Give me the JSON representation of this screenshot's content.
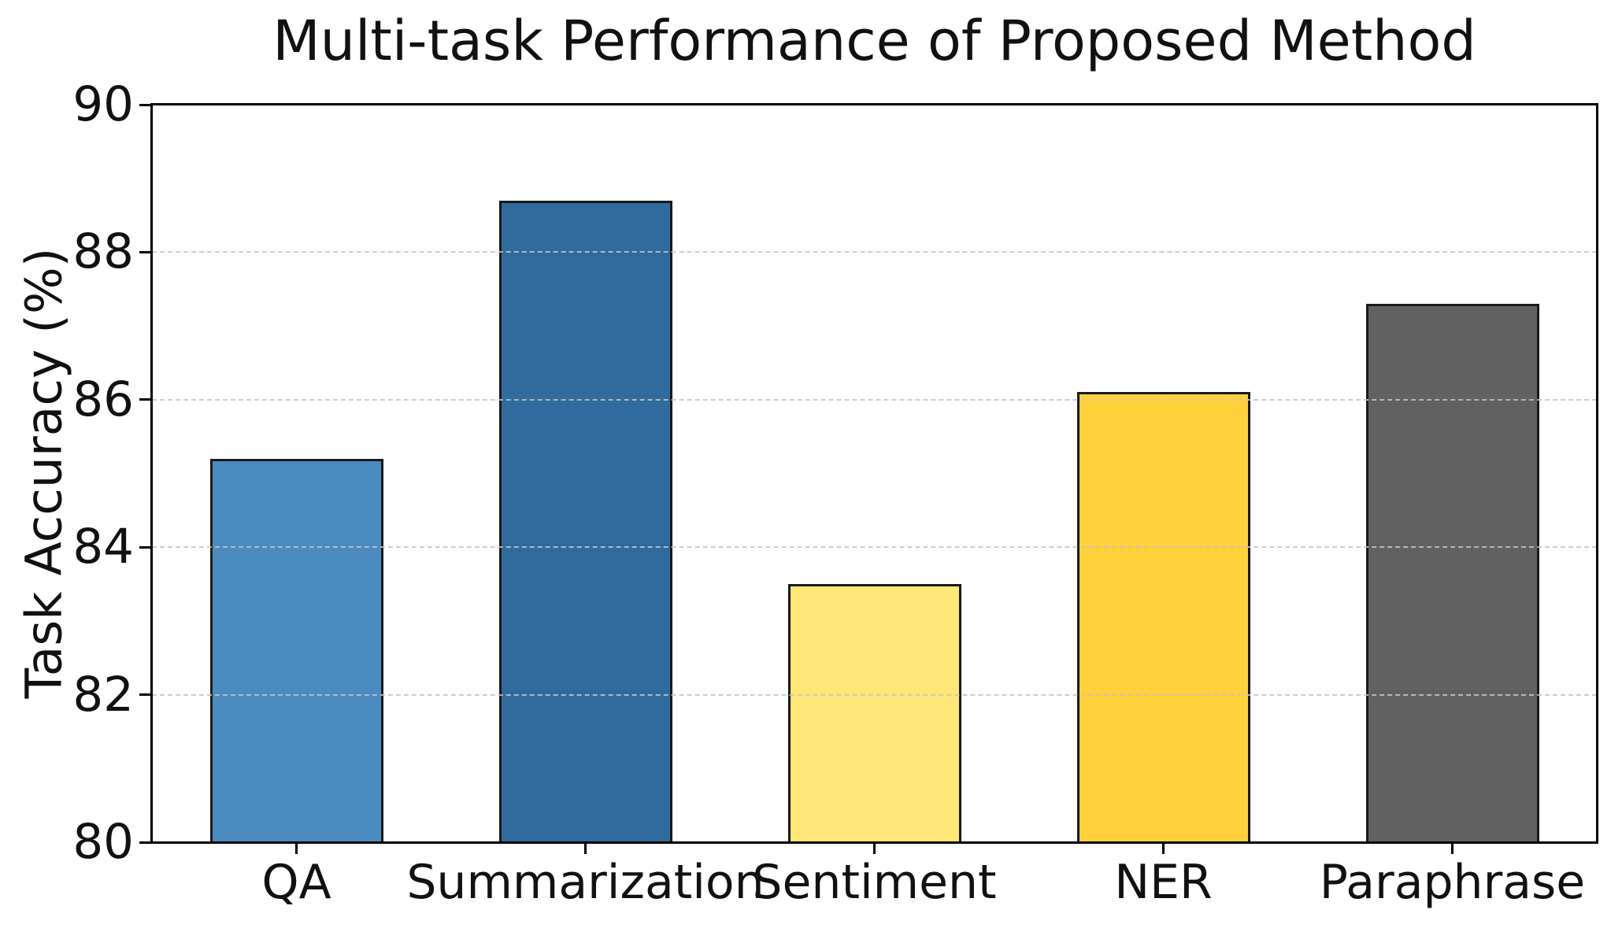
{
  "chart_data": {
    "type": "bar",
    "title": "Multi-task Performance of Proposed Method",
    "ylabel": "Task Accuracy (%)",
    "xlabel": "",
    "categories": [
      "QA",
      "Summarization",
      "Sentiment",
      "NER",
      "Paraphrase"
    ],
    "values": [
      85.2,
      88.7,
      83.5,
      86.1,
      87.3
    ],
    "bar_colors": [
      "#4c8bc0",
      "#316a9c",
      "#ffe678",
      "#ffd23b",
      "#616161"
    ],
    "bar_edge_color": "#1a1a1a",
    "ylim": [
      80,
      90
    ],
    "yticks": [
      80,
      82,
      84,
      86,
      88,
      90
    ],
    "grid": {
      "axis": "y",
      "style": "dashed",
      "color": "#c5c5c5",
      "drawn_over_bars": true
    },
    "legend": "none",
    "frame": "full box, black spines",
    "background": "#ffffff"
  }
}
